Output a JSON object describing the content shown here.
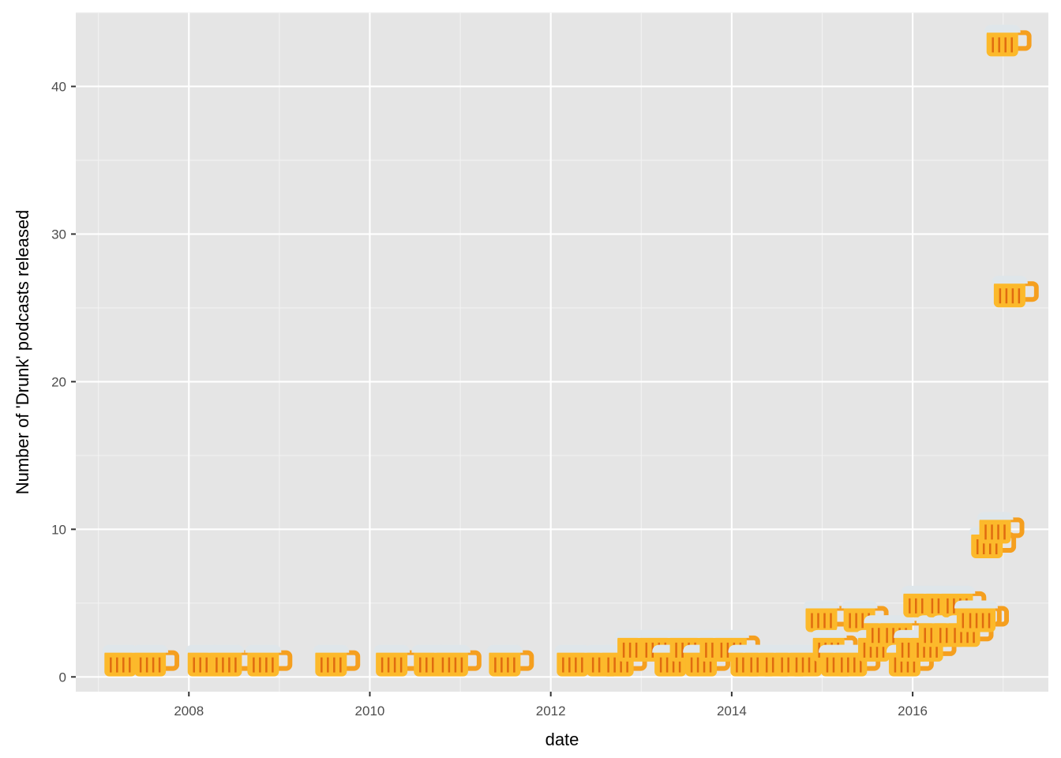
{
  "chart_data": {
    "type": "scatter",
    "marker": "beer-mug-emoji",
    "xlabel": "date",
    "ylabel": "Number of 'Drunk' podcasts released",
    "xlim": [
      2006.75,
      2017.5
    ],
    "ylim": [
      -1,
      45
    ],
    "x_ticks": [
      2008,
      2010,
      2012,
      2014,
      2016
    ],
    "x_tick_labels": [
      "2008",
      "2010",
      "2012",
      "2014",
      "2016"
    ],
    "y_ticks": [
      0,
      10,
      20,
      30,
      40
    ],
    "y_tick_labels": [
      "0",
      "10",
      "20",
      "30",
      "40"
    ],
    "grid": true,
    "points": [
      {
        "x": 2007.25,
        "y": 1
      },
      {
        "x": 2007.58,
        "y": 1
      },
      {
        "x": 2008.17,
        "y": 1
      },
      {
        "x": 2008.42,
        "y": 1
      },
      {
        "x": 2008.83,
        "y": 1
      },
      {
        "x": 2009.58,
        "y": 1
      },
      {
        "x": 2010.25,
        "y": 1
      },
      {
        "x": 2010.67,
        "y": 1
      },
      {
        "x": 2010.92,
        "y": 1
      },
      {
        "x": 2011.5,
        "y": 1
      },
      {
        "x": 2012.25,
        "y": 1
      },
      {
        "x": 2012.58,
        "y": 1
      },
      {
        "x": 2012.75,
        "y": 1
      },
      {
        "x": 2012.92,
        "y": 2
      },
      {
        "x": 2013.17,
        "y": 2
      },
      {
        "x": 2013.33,
        "y": 1
      },
      {
        "x": 2013.5,
        "y": 2
      },
      {
        "x": 2013.67,
        "y": 1
      },
      {
        "x": 2013.83,
        "y": 2
      },
      {
        "x": 2014.0,
        "y": 2
      },
      {
        "x": 2014.17,
        "y": 1
      },
      {
        "x": 2014.33,
        "y": 1
      },
      {
        "x": 2014.5,
        "y": 1
      },
      {
        "x": 2014.67,
        "y": 1
      },
      {
        "x": 2014.83,
        "y": 1
      },
      {
        "x": 2015.0,
        "y": 4
      },
      {
        "x": 2015.08,
        "y": 2
      },
      {
        "x": 2015.17,
        "y": 1
      },
      {
        "x": 2015.33,
        "y": 1
      },
      {
        "x": 2015.42,
        "y": 4
      },
      {
        "x": 2015.58,
        "y": 2
      },
      {
        "x": 2015.67,
        "y": 3
      },
      {
        "x": 2015.83,
        "y": 3
      },
      {
        "x": 2015.92,
        "y": 1
      },
      {
        "x": 2016.0,
        "y": 2
      },
      {
        "x": 2016.08,
        "y": 5
      },
      {
        "x": 2016.17,
        "y": 2
      },
      {
        "x": 2016.25,
        "y": 3
      },
      {
        "x": 2016.33,
        "y": 5
      },
      {
        "x": 2016.42,
        "y": 3
      },
      {
        "x": 2016.5,
        "y": 5
      },
      {
        "x": 2016.58,
        "y": 3
      },
      {
        "x": 2016.67,
        "y": 4
      },
      {
        "x": 2016.75,
        "y": 4
      },
      {
        "x": 2016.83,
        "y": 9
      },
      {
        "x": 2016.92,
        "y": 10
      },
      {
        "x": 2017.0,
        "y": 43
      },
      {
        "x": 2017.08,
        "y": 26
      }
    ]
  }
}
